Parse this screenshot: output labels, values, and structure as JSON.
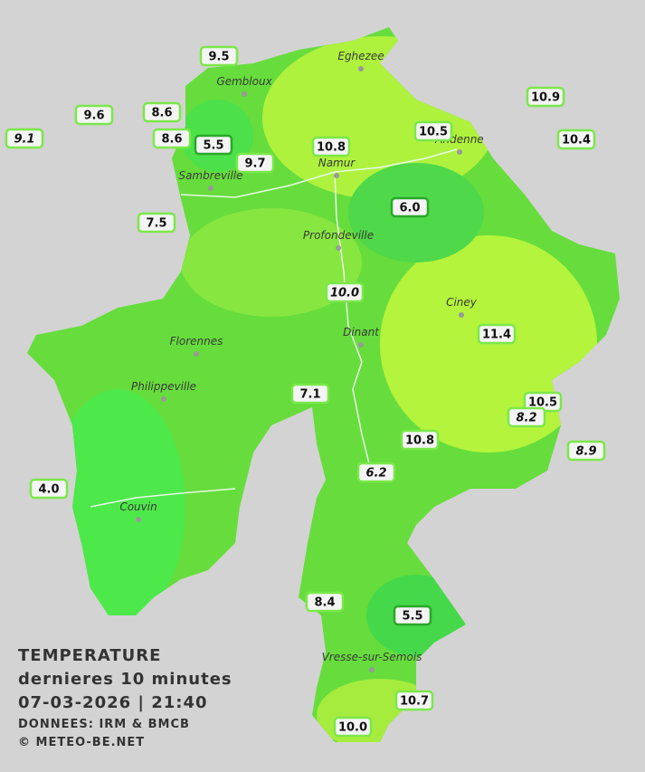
{
  "map": {
    "title": [
      "TEMPERATURE",
      "dernieres 10 minutes",
      "07-03-2026  |  21:40"
    ],
    "credits": [
      "DONNEES: IRM & BMCB",
      "© METEO-BE.NET"
    ],
    "cities": [
      "Eghezee",
      "Gembloux",
      "Andenne",
      "Namur",
      "Sambreville",
      "Profondeville",
      "Ciney",
      "Dinant",
      "Florennes",
      "Philippeville",
      "Couvin",
      "Vresse-sur-Semois"
    ],
    "stations": [
      {
        "label": "9.5"
      },
      {
        "label": "9.6"
      },
      {
        "label": "8.6"
      },
      {
        "label": "9.1",
        "italic": true
      },
      {
        "label": "8.6"
      },
      {
        "label": "5.5"
      },
      {
        "label": "9.7"
      },
      {
        "label": "10.8"
      },
      {
        "label": "10.5"
      },
      {
        "label": "10.9"
      },
      {
        "label": "10.4"
      },
      {
        "label": "7.5"
      },
      {
        "label": "6.0"
      },
      {
        "label": "10.0",
        "italic": true
      },
      {
        "label": "11.4"
      },
      {
        "label": "7.1"
      },
      {
        "label": "10.5"
      },
      {
        "label": "8.2",
        "italic": true
      },
      {
        "label": "10.8"
      },
      {
        "label": "8.9",
        "italic": true
      },
      {
        "label": "6.2",
        "italic": true
      },
      {
        "label": "4.0"
      },
      {
        "label": "8.4"
      },
      {
        "label": "5.5"
      },
      {
        "label": "10.7"
      },
      {
        "label": "10.0"
      }
    ]
  }
}
